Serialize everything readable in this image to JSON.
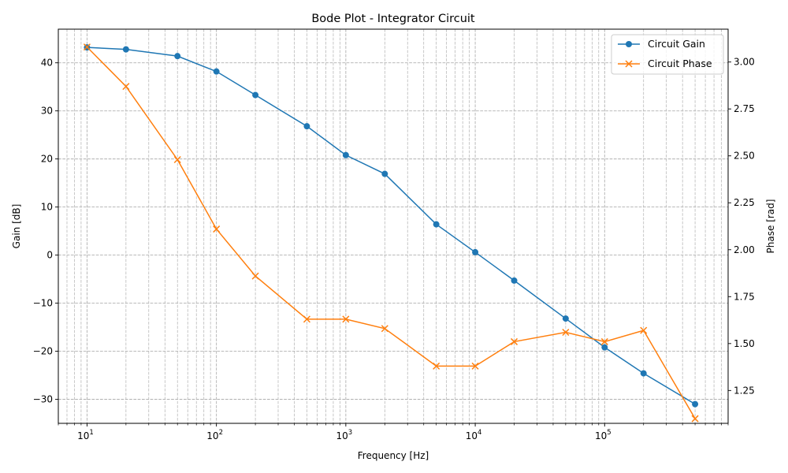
{
  "chart_data": {
    "type": "line",
    "title": "Bode Plot - Integrator Circuit",
    "xlabel": "Frequency [Hz]",
    "ylabel_left": "Gain [dB]",
    "ylabel_right": "Phase [rad]",
    "x_scale": "log",
    "xlim": [
      6,
      900000
    ],
    "ylim_left": [
      -35,
      47
    ],
    "ylim_right": [
      1.075,
      3.175
    ],
    "grid": true,
    "legend_position": "top-right",
    "x": [
      10,
      20,
      50,
      100,
      200,
      500,
      1000,
      2000,
      5000,
      10000,
      20000,
      50000,
      100000,
      200000,
      500000
    ],
    "x_tick_labels": [
      {
        "value": 10,
        "base": "10",
        "exp": "1"
      },
      {
        "value": 100,
        "base": "10",
        "exp": "2"
      },
      {
        "value": 1000,
        "base": "10",
        "exp": "3"
      },
      {
        "value": 10000,
        "base": "10",
        "exp": "4"
      },
      {
        "value": 100000,
        "base": "10",
        "exp": "5"
      }
    ],
    "y_left_ticks": [
      {
        "value": 40,
        "label": "40"
      },
      {
        "value": 30,
        "label": "30"
      },
      {
        "value": 20,
        "label": "20"
      },
      {
        "value": 10,
        "label": "10"
      },
      {
        "value": 0,
        "label": "0"
      },
      {
        "value": -10,
        "label": "−10"
      },
      {
        "value": -20,
        "label": "−20"
      },
      {
        "value": -30,
        "label": "−30"
      }
    ],
    "y_right_ticks": [
      {
        "value": 3.0,
        "label": "3.00"
      },
      {
        "value": 2.75,
        "label": "2.75"
      },
      {
        "value": 2.5,
        "label": "2.50"
      },
      {
        "value": 2.25,
        "label": "2.25"
      },
      {
        "value": 2.0,
        "label": "2.00"
      },
      {
        "value": 1.75,
        "label": "1.75"
      },
      {
        "value": 1.5,
        "label": "1.50"
      },
      {
        "value": 1.25,
        "label": "1.25"
      }
    ],
    "series": [
      {
        "name": "Circuit Gain",
        "axis": "left",
        "marker": "circle",
        "color": "#1f77b4",
        "values": [
          43.2,
          42.8,
          41.4,
          38.2,
          33.3,
          26.8,
          20.8,
          16.9,
          6.4,
          0.6,
          -5.3,
          -13.2,
          -19.2,
          -24.6,
          -31.0
        ]
      },
      {
        "name": "Circuit Phase",
        "axis": "right",
        "marker": "x",
        "color": "#ff7f0e",
        "values": [
          3.08,
          2.87,
          2.48,
          2.11,
          1.86,
          1.63,
          1.63,
          1.58,
          1.38,
          1.38,
          1.51,
          1.56,
          1.51,
          1.57,
          1.1
        ]
      }
    ]
  }
}
